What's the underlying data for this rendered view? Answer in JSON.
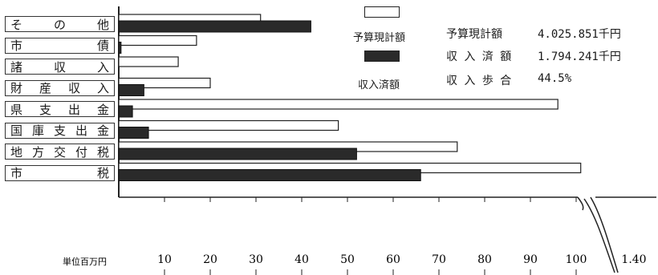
{
  "chart_data": {
    "type": "bar",
    "orientation": "horizontal",
    "categories": [
      "そ の 他",
      "市 債",
      "諸 収 入",
      "財 産 収 入",
      "県 支 出 金",
      "国 庫 支 出 金",
      "地 方 交 付 税",
      "市 税"
    ],
    "series": [
      {
        "name": "予算現計額",
        "values": [
          31,
          17,
          13,
          20,
          96,
          48,
          74,
          101
        ]
      },
      {
        "name": "収入済額",
        "values": [
          42,
          0.5,
          0,
          5.5,
          3,
          6.5,
          52,
          66
        ]
      }
    ],
    "xlim": [
      0,
      110
    ],
    "x_ticks": [
      "10",
      "20",
      "30",
      "40",
      "50",
      "60",
      "70",
      "80",
      "90",
      "100",
      "1.40"
    ],
    "x_unit_label": "単位百万円",
    "legend": [
      "予算現計額",
      "収入済額"
    ],
    "legend_position": "top-center"
  },
  "summary": {
    "budget_label": "予算現計額",
    "budget_value": "4.025.851千円",
    "received_label": "収 入 済 額",
    "received_value": "1.794.241千円",
    "ratio_label": "収 入 歩 合",
    "ratio_value": "44.5%"
  },
  "colors": {
    "budget": "#ffffff",
    "received": "#2a2a2a",
    "outline": "#222222"
  }
}
